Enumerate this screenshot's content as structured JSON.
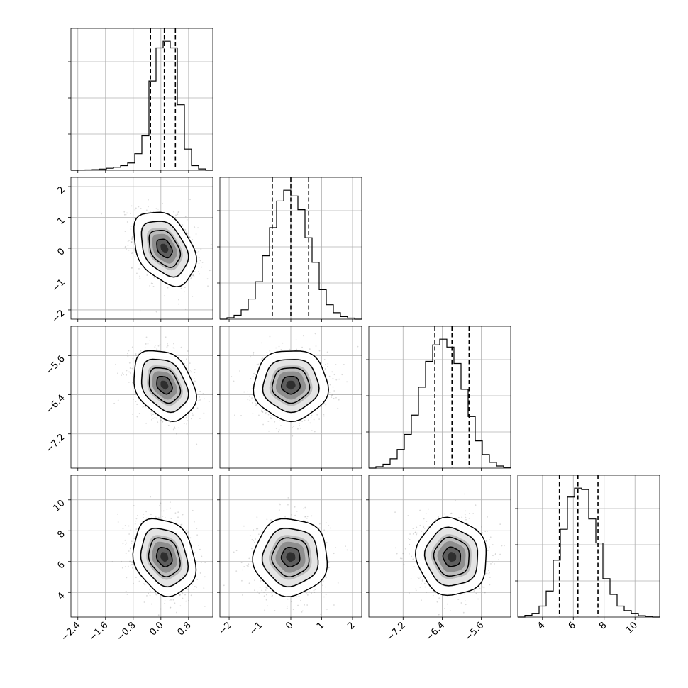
{
  "chart_data": {
    "type": "corner",
    "grid": true,
    "params": [
      {
        "range": [
          -2.6,
          1.5
        ],
        "ticks": [
          -2.4,
          -1.6,
          -0.8,
          0.0,
          0.8
        ],
        "tick_labels": [
          "−2.4",
          "−1.6",
          "−0.8",
          "0.0",
          "0.8"
        ],
        "mean": 0.1,
        "sd": 0.45,
        "quantiles": [
          -0.3,
          0.1,
          0.42
        ],
        "hist": {
          "edges": [
            -2.6,
            -2.395,
            -2.19,
            -1.985,
            -1.78,
            -1.575,
            -1.37,
            -1.165,
            -0.96,
            -0.755,
            -0.55,
            -0.345,
            -0.14,
            0.065,
            0.27,
            0.475,
            0.68,
            0.885,
            1.09,
            1.295,
            1.5
          ],
          "counts": [
            0,
            2,
            5,
            10,
            18,
            30,
            45,
            70,
            110,
            250,
            520,
            1350,
            1850,
            1950,
            1850,
            990,
            320,
            70,
            20,
            0
          ]
        }
      },
      {
        "range": [
          -2.3,
          2.3
        ],
        "ticks": [
          -2,
          -1,
          0,
          1,
          2
        ],
        "tick_labels": [
          "−2",
          "−1",
          "0",
          "1",
          "2"
        ],
        "mean": 0.0,
        "sd": 0.6,
        "quantiles": [
          -0.6,
          0.0,
          0.58
        ],
        "hist": {
          "edges": [
            -2.3,
            -2.07,
            -1.84,
            -1.61,
            -1.38,
            -1.15,
            -0.92,
            -0.69,
            -0.46,
            -0.23,
            0.0,
            0.23,
            0.46,
            0.69,
            0.92,
            1.15,
            1.38,
            1.61,
            1.84,
            2.07,
            2.3
          ],
          "counts": [
            0,
            20,
            55,
            130,
            280,
            520,
            880,
            1270,
            1640,
            1790,
            1710,
            1520,
            1130,
            790,
            410,
            200,
            90,
            35,
            15,
            0
          ]
        }
      },
      {
        "range": [
          -7.9,
          -5.0
        ],
        "ticks": [
          -7.2,
          -6.4,
          -5.6
        ],
        "tick_labels": [
          "−7.2",
          "−6.4",
          "−5.6"
        ],
        "mean": -6.2,
        "sd": 0.36,
        "quantiles": [
          -6.55,
          -6.2,
          -5.85
        ],
        "hist": {
          "edges": [
            -7.9,
            -7.755,
            -7.61,
            -7.465,
            -7.32,
            -7.175,
            -7.03,
            -6.885,
            -6.74,
            -6.595,
            -6.45,
            -6.305,
            -6.16,
            -6.015,
            -5.87,
            -5.725,
            -5.58,
            -5.435,
            -5.29,
            -5.145,
            -5.0
          ],
          "counts": [
            0,
            20,
            55,
            130,
            260,
            470,
            740,
            1130,
            1490,
            1720,
            1800,
            1690,
            1460,
            1100,
            720,
            380,
            190,
            80,
            30,
            10
          ]
        }
      },
      {
        "range": [
          2.4,
          11.6
        ],
        "ticks": [
          4,
          6,
          8,
          10
        ],
        "tick_labels": [
          "4",
          "6",
          "8",
          "10"
        ],
        "mean": 6.3,
        "sd": 1.25,
        "quantiles": [
          5.1,
          6.3,
          7.6
        ],
        "hist": {
          "edges": [
            2.4,
            2.86,
            3.32,
            3.78,
            4.24,
            4.7,
            5.16,
            5.62,
            6.08,
            6.54,
            7.0,
            7.46,
            7.92,
            8.38,
            8.84,
            9.3,
            9.76,
            10.22,
            10.68,
            11.14,
            11.6
          ],
          "counts": [
            0,
            25,
            55,
            160,
            380,
            830,
            1280,
            1750,
            1880,
            1860,
            1430,
            1080,
            560,
            330,
            160,
            95,
            55,
            20,
            10,
            0
          ]
        }
      }
    ],
    "pairs": [
      {
        "row": 1,
        "col": 0,
        "corr": -0.35
      },
      {
        "row": 2,
        "col": 0,
        "corr": -0.3
      },
      {
        "row": 2,
        "col": 1,
        "corr": 0.0
      },
      {
        "row": 3,
        "col": 0,
        "corr": -0.2
      },
      {
        "row": 3,
        "col": 1,
        "corr": 0.0
      },
      {
        "row": 3,
        "col": 2,
        "corr": -0.05
      }
    ]
  }
}
